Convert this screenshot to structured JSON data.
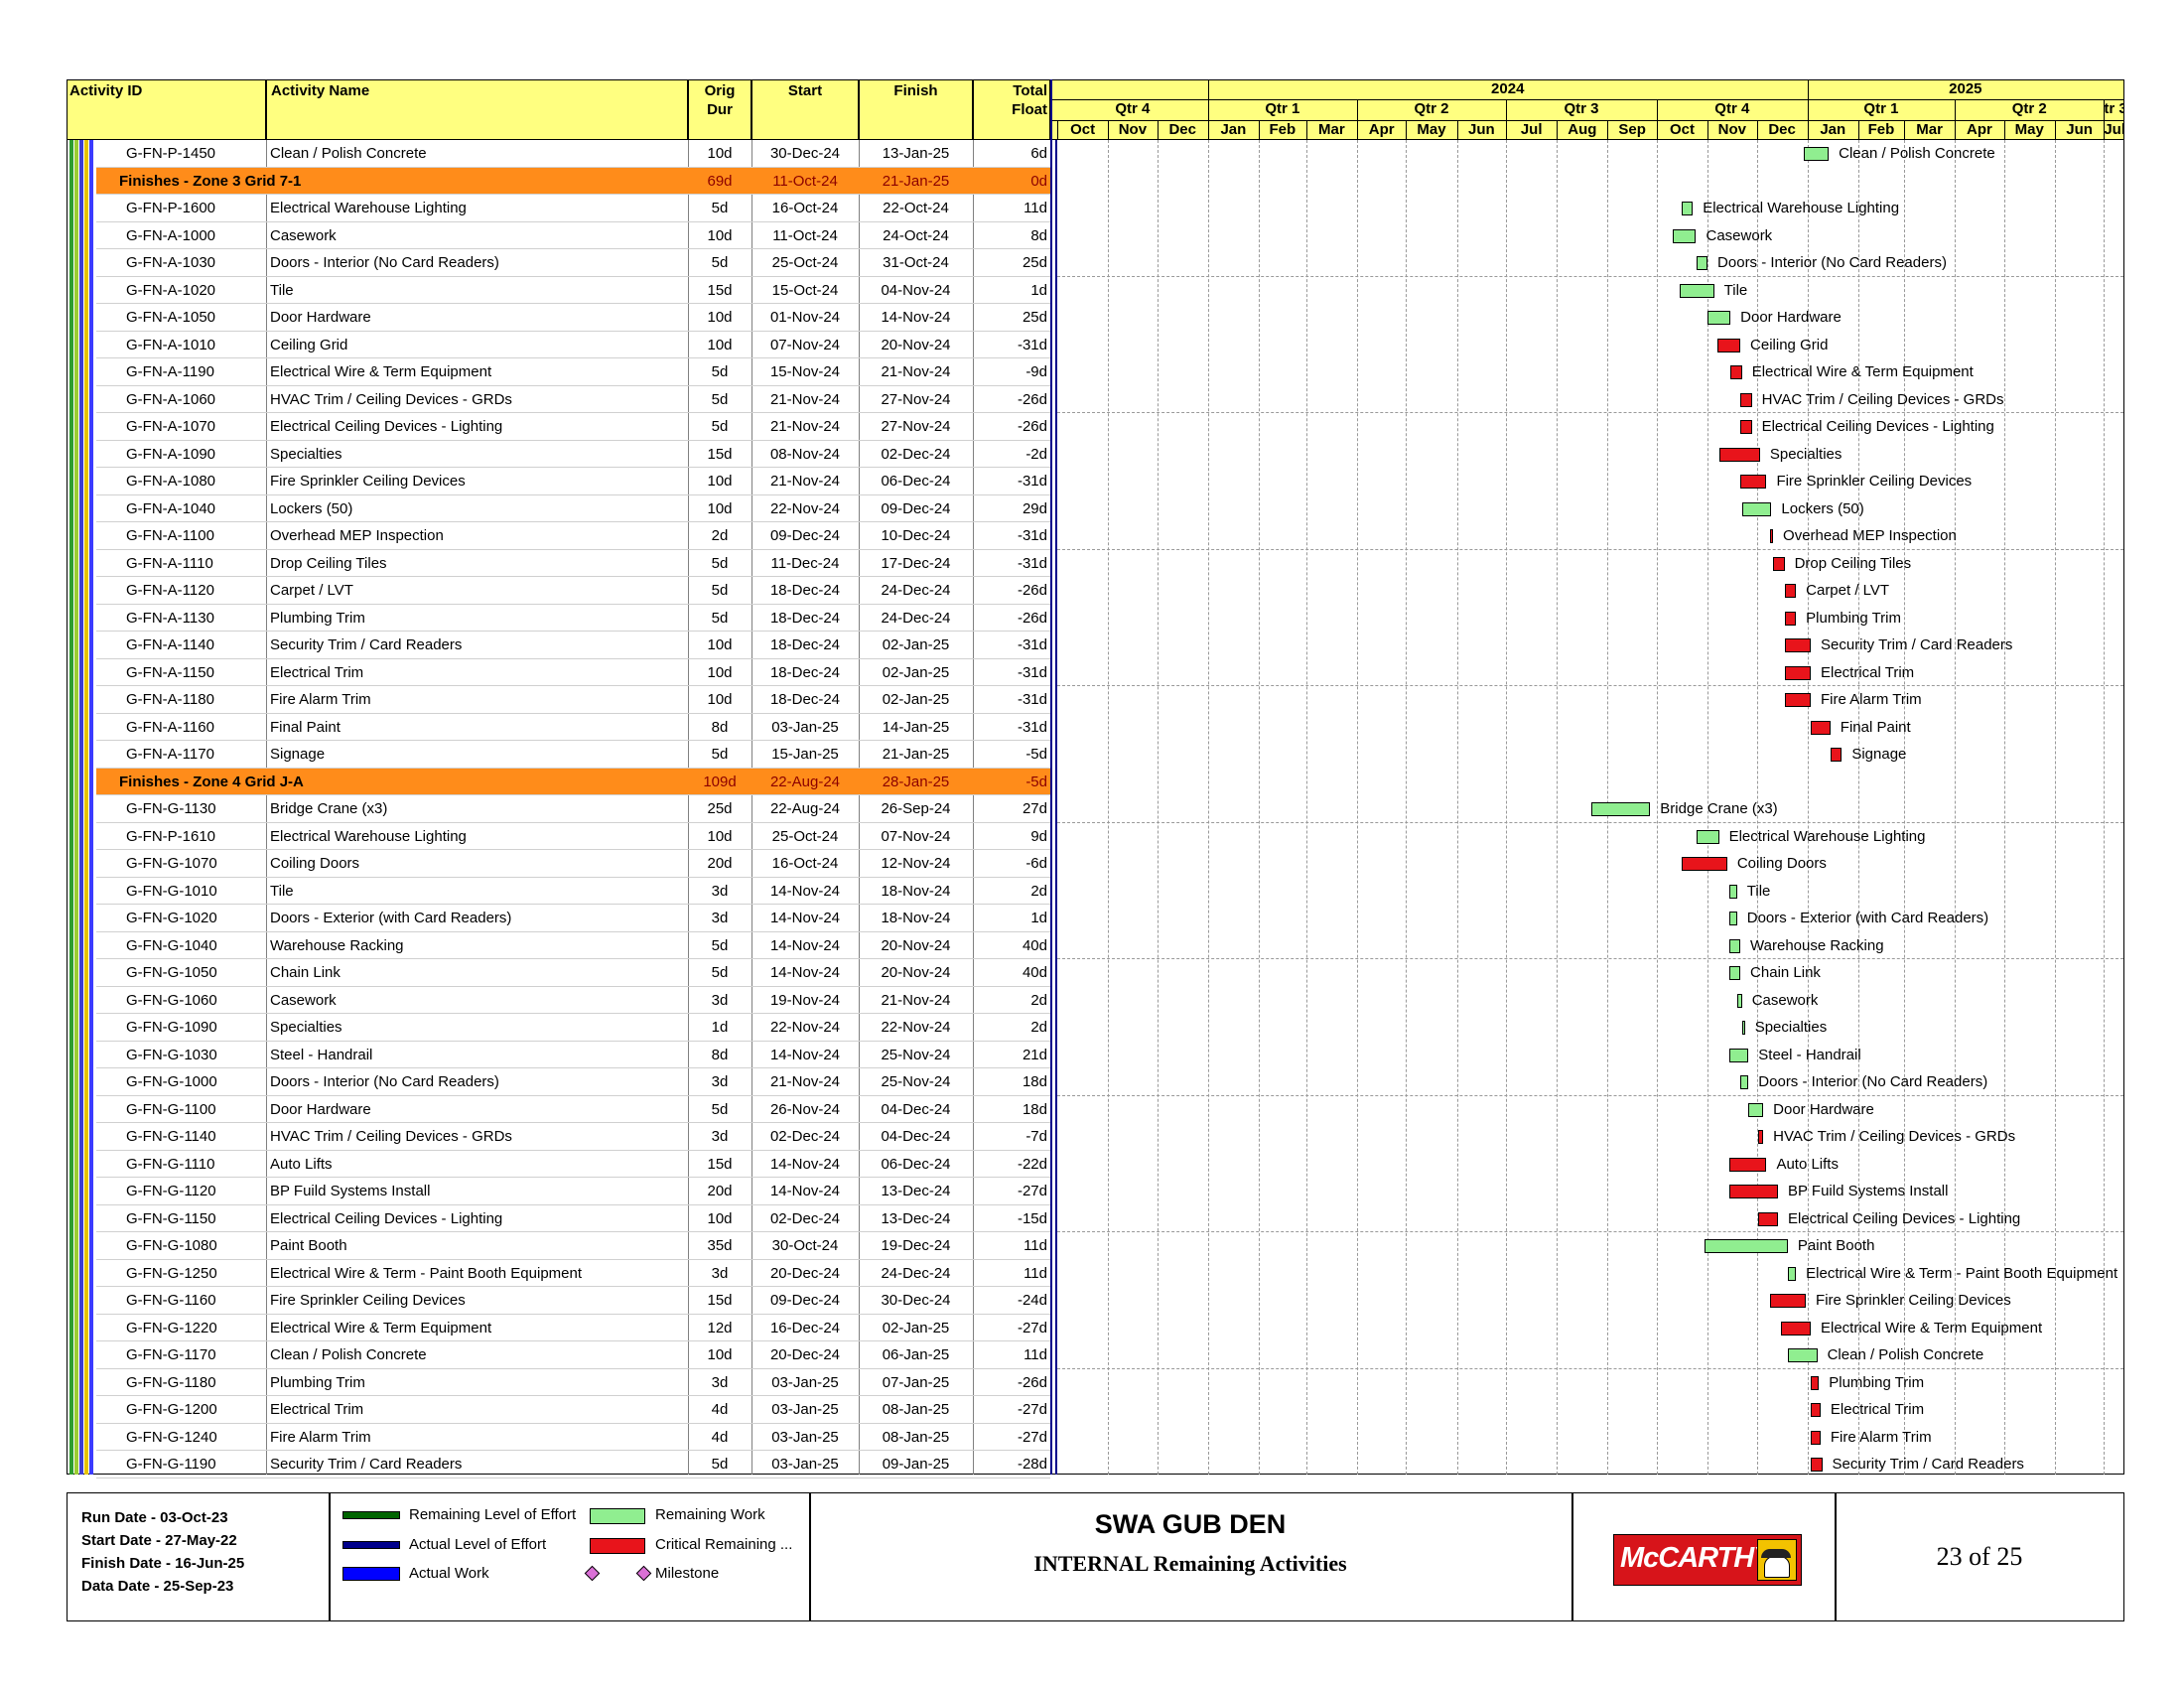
{
  "header": {
    "activity_id": "Activity ID",
    "activity_name": "Activity Name",
    "orig_dur_1": "Orig",
    "orig_dur_2": "Dur",
    "start": "Start",
    "finish": "Finish",
    "total_float_1": "Total",
    "total_float_2": "Float"
  },
  "timescale": {
    "years": [
      "2024",
      "2025"
    ],
    "quarters": [
      "Qtr 4",
      "Qtr 1",
      "Qtr 2",
      "Qtr 3",
      "Qtr 4",
      "Qtr 1",
      "Qtr 2",
      "tr 3"
    ],
    "months": [
      "Oct",
      "Nov",
      "Dec",
      "Jan",
      "Feb",
      "Mar",
      "Apr",
      "May",
      "Jun",
      "Jul",
      "Aug",
      "Sep",
      "Oct",
      "Nov",
      "Dec",
      "Jan",
      "Feb",
      "Mar",
      "Apr",
      "May",
      "Jun",
      "Jul"
    ]
  },
  "colors": {
    "header_bg": "#ffff80",
    "group_bg": "#ff8c1a",
    "critical": "#e8141b",
    "noncritical": "#90ee90",
    "level_of_effort": "#006400",
    "actual_loe": "#00008b",
    "actual_work": "#0000ff",
    "milestone": "#da70d6"
  },
  "rows": [
    {
      "type": "activity",
      "id": "G-FN-P-1450",
      "name": "Clean / Polish Concrete",
      "dur": "10d",
      "start": "30-Dec-24",
      "finish": "13-Jan-25",
      "float": "6d",
      "critical": false,
      "s": "2024-12-30",
      "f": "2025-01-13"
    },
    {
      "type": "group",
      "name": "Finishes - Zone 3 Grid 7-1",
      "dur": "69d",
      "start": "11-Oct-24",
      "finish": "21-Jan-25",
      "float": "0d"
    },
    {
      "type": "activity",
      "id": "G-FN-P-1600",
      "name": "Electrical Warehouse Lighting",
      "dur": "5d",
      "start": "16-Oct-24",
      "finish": "22-Oct-24",
      "float": "11d",
      "critical": false,
      "s": "2024-10-16",
      "f": "2024-10-22"
    },
    {
      "type": "activity",
      "id": "G-FN-A-1000",
      "name": "Casework",
      "dur": "10d",
      "start": "11-Oct-24",
      "finish": "24-Oct-24",
      "float": "8d",
      "critical": false,
      "s": "2024-10-11",
      "f": "2024-10-24"
    },
    {
      "type": "activity",
      "id": "G-FN-A-1030",
      "name": "Doors - Interior (No Card Readers)",
      "dur": "5d",
      "start": "25-Oct-24",
      "finish": "31-Oct-24",
      "float": "25d",
      "critical": false,
      "s": "2024-10-25",
      "f": "2024-10-31"
    },
    {
      "type": "activity",
      "id": "G-FN-A-1020",
      "name": "Tile",
      "dur": "15d",
      "start": "15-Oct-24",
      "finish": "04-Nov-24",
      "float": "1d",
      "critical": false,
      "s": "2024-10-15",
      "f": "2024-11-04"
    },
    {
      "type": "activity",
      "id": "G-FN-A-1050",
      "name": "Door Hardware",
      "dur": "10d",
      "start": "01-Nov-24",
      "finish": "14-Nov-24",
      "float": "25d",
      "critical": false,
      "s": "2024-11-01",
      "f": "2024-11-14"
    },
    {
      "type": "activity",
      "id": "G-FN-A-1010",
      "name": "Ceiling Grid",
      "dur": "10d",
      "start": "07-Nov-24",
      "finish": "20-Nov-24",
      "float": "-31d",
      "critical": true,
      "s": "2024-11-07",
      "f": "2024-11-20"
    },
    {
      "type": "activity",
      "id": "G-FN-A-1190",
      "name": "Electrical Wire & Term Equipment",
      "dur": "5d",
      "start": "15-Nov-24",
      "finish": "21-Nov-24",
      "float": "-9d",
      "critical": true,
      "s": "2024-11-15",
      "f": "2024-11-21"
    },
    {
      "type": "activity",
      "id": "G-FN-A-1060",
      "name": "HVAC Trim / Ceiling Devices - GRDs",
      "dur": "5d",
      "start": "21-Nov-24",
      "finish": "27-Nov-24",
      "float": "-26d",
      "critical": true,
      "s": "2024-11-21",
      "f": "2024-11-27"
    },
    {
      "type": "activity",
      "id": "G-FN-A-1070",
      "name": "Electrical Ceiling Devices - Lighting",
      "dur": "5d",
      "start": "21-Nov-24",
      "finish": "27-Nov-24",
      "float": "-26d",
      "critical": true,
      "s": "2024-11-21",
      "f": "2024-11-27"
    },
    {
      "type": "activity",
      "id": "G-FN-A-1090",
      "name": "Specialties",
      "dur": "15d",
      "start": "08-Nov-24",
      "finish": "02-Dec-24",
      "float": "-2d",
      "critical": true,
      "s": "2024-11-08",
      "f": "2024-12-02"
    },
    {
      "type": "activity",
      "id": "G-FN-A-1080",
      "name": "Fire Sprinkler Ceiling Devices",
      "dur": "10d",
      "start": "21-Nov-24",
      "finish": "06-Dec-24",
      "float": "-31d",
      "critical": true,
      "s": "2024-11-21",
      "f": "2024-12-06"
    },
    {
      "type": "activity",
      "id": "G-FN-A-1040",
      "name": "Lockers (50)",
      "dur": "10d",
      "start": "22-Nov-24",
      "finish": "09-Dec-24",
      "float": "29d",
      "critical": false,
      "s": "2024-11-22",
      "f": "2024-12-09"
    },
    {
      "type": "activity",
      "id": "G-FN-A-1100",
      "name": "Overhead MEP Inspection",
      "dur": "2d",
      "start": "09-Dec-24",
      "finish": "10-Dec-24",
      "float": "-31d",
      "critical": true,
      "s": "2024-12-09",
      "f": "2024-12-10"
    },
    {
      "type": "activity",
      "id": "G-FN-A-1110",
      "name": "Drop Ceiling Tiles",
      "dur": "5d",
      "start": "11-Dec-24",
      "finish": "17-Dec-24",
      "float": "-31d",
      "critical": true,
      "s": "2024-12-11",
      "f": "2024-12-17"
    },
    {
      "type": "activity",
      "id": "G-FN-A-1120",
      "name": "Carpet / LVT",
      "dur": "5d",
      "start": "18-Dec-24",
      "finish": "24-Dec-24",
      "float": "-26d",
      "critical": true,
      "s": "2024-12-18",
      "f": "2024-12-24"
    },
    {
      "type": "activity",
      "id": "G-FN-A-1130",
      "name": "Plumbing Trim",
      "dur": "5d",
      "start": "18-Dec-24",
      "finish": "24-Dec-24",
      "float": "-26d",
      "critical": true,
      "s": "2024-12-18",
      "f": "2024-12-24"
    },
    {
      "type": "activity",
      "id": "G-FN-A-1140",
      "name": "Security Trim / Card Readers",
      "dur": "10d",
      "start": "18-Dec-24",
      "finish": "02-Jan-25",
      "float": "-31d",
      "critical": true,
      "s": "2024-12-18",
      "f": "2025-01-02"
    },
    {
      "type": "activity",
      "id": "G-FN-A-1150",
      "name": "Electrical Trim",
      "dur": "10d",
      "start": "18-Dec-24",
      "finish": "02-Jan-25",
      "float": "-31d",
      "critical": true,
      "s": "2024-12-18",
      "f": "2025-01-02"
    },
    {
      "type": "activity",
      "id": "G-FN-A-1180",
      "name": "Fire Alarm Trim",
      "dur": "10d",
      "start": "18-Dec-24",
      "finish": "02-Jan-25",
      "float": "-31d",
      "critical": true,
      "s": "2024-12-18",
      "f": "2025-01-02"
    },
    {
      "type": "activity",
      "id": "G-FN-A-1160",
      "name": "Final Paint",
      "dur": "8d",
      "start": "03-Jan-25",
      "finish": "14-Jan-25",
      "float": "-31d",
      "critical": true,
      "s": "2025-01-03",
      "f": "2025-01-14"
    },
    {
      "type": "activity",
      "id": "G-FN-A-1170",
      "name": "Signage",
      "dur": "5d",
      "start": "15-Jan-25",
      "finish": "21-Jan-25",
      "float": "-5d",
      "critical": true,
      "s": "2025-01-15",
      "f": "2025-01-21"
    },
    {
      "type": "group",
      "name": "Finishes - Zone 4 Grid J-A",
      "dur": "109d",
      "start": "22-Aug-24",
      "finish": "28-Jan-25",
      "float": "-5d"
    },
    {
      "type": "activity",
      "id": "G-FN-G-1130",
      "name": "Bridge Crane (x3)",
      "dur": "25d",
      "start": "22-Aug-24",
      "finish": "26-Sep-24",
      "float": "27d",
      "critical": false,
      "s": "2024-08-22",
      "f": "2024-09-26"
    },
    {
      "type": "activity",
      "id": "G-FN-P-1610",
      "name": "Electrical Warehouse Lighting",
      "dur": "10d",
      "start": "25-Oct-24",
      "finish": "07-Nov-24",
      "float": "9d",
      "critical": false,
      "s": "2024-10-25",
      "f": "2024-11-07"
    },
    {
      "type": "activity",
      "id": "G-FN-G-1070",
      "name": "Coiling Doors",
      "dur": "20d",
      "start": "16-Oct-24",
      "finish": "12-Nov-24",
      "float": "-6d",
      "critical": true,
      "s": "2024-10-16",
      "f": "2024-11-12"
    },
    {
      "type": "activity",
      "id": "G-FN-G-1010",
      "name": "Tile",
      "dur": "3d",
      "start": "14-Nov-24",
      "finish": "18-Nov-24",
      "float": "2d",
      "critical": false,
      "s": "2024-11-14",
      "f": "2024-11-18"
    },
    {
      "type": "activity",
      "id": "G-FN-G-1020",
      "name": "Doors - Exterior (with Card Readers)",
      "dur": "3d",
      "start": "14-Nov-24",
      "finish": "18-Nov-24",
      "float": "1d",
      "critical": false,
      "s": "2024-11-14",
      "f": "2024-11-18"
    },
    {
      "type": "activity",
      "id": "G-FN-G-1040",
      "name": "Warehouse Racking",
      "dur": "5d",
      "start": "14-Nov-24",
      "finish": "20-Nov-24",
      "float": "40d",
      "critical": false,
      "s": "2024-11-14",
      "f": "2024-11-20"
    },
    {
      "type": "activity",
      "id": "G-FN-G-1050",
      "name": "Chain Link",
      "dur": "5d",
      "start": "14-Nov-24",
      "finish": "20-Nov-24",
      "float": "40d",
      "critical": false,
      "s": "2024-11-14",
      "f": "2024-11-20"
    },
    {
      "type": "activity",
      "id": "G-FN-G-1060",
      "name": "Casework",
      "dur": "3d",
      "start": "19-Nov-24",
      "finish": "21-Nov-24",
      "float": "2d",
      "critical": false,
      "s": "2024-11-19",
      "f": "2024-11-21"
    },
    {
      "type": "activity",
      "id": "G-FN-G-1090",
      "name": "Specialties",
      "dur": "1d",
      "start": "22-Nov-24",
      "finish": "22-Nov-24",
      "float": "2d",
      "critical": false,
      "s": "2024-11-22",
      "f": "2024-11-22"
    },
    {
      "type": "activity",
      "id": "G-FN-G-1030",
      "name": "Steel - Handrail",
      "dur": "8d",
      "start": "14-Nov-24",
      "finish": "25-Nov-24",
      "float": "21d",
      "critical": false,
      "s": "2024-11-14",
      "f": "2024-11-25"
    },
    {
      "type": "activity",
      "id": "G-FN-G-1000",
      "name": "Doors - Interior (No Card Readers)",
      "dur": "3d",
      "start": "21-Nov-24",
      "finish": "25-Nov-24",
      "float": "18d",
      "critical": false,
      "s": "2024-11-21",
      "f": "2024-11-25"
    },
    {
      "type": "activity",
      "id": "G-FN-G-1100",
      "name": "Door Hardware",
      "dur": "5d",
      "start": "26-Nov-24",
      "finish": "04-Dec-24",
      "float": "18d",
      "critical": false,
      "s": "2024-11-26",
      "f": "2024-12-04"
    },
    {
      "type": "activity",
      "id": "G-FN-G-1140",
      "name": "HVAC Trim / Ceiling Devices - GRDs",
      "dur": "3d",
      "start": "02-Dec-24",
      "finish": "04-Dec-24",
      "float": "-7d",
      "critical": true,
      "s": "2024-12-02",
      "f": "2024-12-04"
    },
    {
      "type": "activity",
      "id": "G-FN-G-1110",
      "name": "Auto Lifts",
      "dur": "15d",
      "start": "14-Nov-24",
      "finish": "06-Dec-24",
      "float": "-22d",
      "critical": true,
      "s": "2024-11-14",
      "f": "2024-12-06"
    },
    {
      "type": "activity",
      "id": "G-FN-G-1120",
      "name": "BP Fuild Systems Install",
      "dur": "20d",
      "start": "14-Nov-24",
      "finish": "13-Dec-24",
      "float": "-27d",
      "critical": true,
      "s": "2024-11-14",
      "f": "2024-12-13"
    },
    {
      "type": "activity",
      "id": "G-FN-G-1150",
      "name": "Electrical Ceiling Devices - Lighting",
      "dur": "10d",
      "start": "02-Dec-24",
      "finish": "13-Dec-24",
      "float": "-15d",
      "critical": true,
      "s": "2024-12-02",
      "f": "2024-12-13"
    },
    {
      "type": "activity",
      "id": "G-FN-G-1080",
      "name": "Paint Booth",
      "dur": "35d",
      "start": "30-Oct-24",
      "finish": "19-Dec-24",
      "float": "11d",
      "critical": false,
      "s": "2024-10-30",
      "f": "2024-12-19"
    },
    {
      "type": "activity",
      "id": "G-FN-G-1250",
      "name": "Electrical Wire & Term - Paint Booth Equipment",
      "dur": "3d",
      "start": "20-Dec-24",
      "finish": "24-Dec-24",
      "float": "11d",
      "critical": false,
      "s": "2024-12-20",
      "f": "2024-12-24"
    },
    {
      "type": "activity",
      "id": "G-FN-G-1160",
      "name": "Fire Sprinkler Ceiling Devices",
      "dur": "15d",
      "start": "09-Dec-24",
      "finish": "30-Dec-24",
      "float": "-24d",
      "critical": true,
      "s": "2024-12-09",
      "f": "2024-12-30"
    },
    {
      "type": "activity",
      "id": "G-FN-G-1220",
      "name": "Electrical Wire & Term Equipment",
      "dur": "12d",
      "start": "16-Dec-24",
      "finish": "02-Jan-25",
      "float": "-27d",
      "critical": true,
      "s": "2024-12-16",
      "f": "2025-01-02"
    },
    {
      "type": "activity",
      "id": "G-FN-G-1170",
      "name": "Clean / Polish Concrete",
      "dur": "10d",
      "start": "20-Dec-24",
      "finish": "06-Jan-25",
      "float": "11d",
      "critical": false,
      "s": "2024-12-20",
      "f": "2025-01-06"
    },
    {
      "type": "activity",
      "id": "G-FN-G-1180",
      "name": "Plumbing Trim",
      "dur": "3d",
      "start": "03-Jan-25",
      "finish": "07-Jan-25",
      "float": "-26d",
      "critical": true,
      "s": "2025-01-03",
      "f": "2025-01-07"
    },
    {
      "type": "activity",
      "id": "G-FN-G-1200",
      "name": "Electrical Trim",
      "dur": "4d",
      "start": "03-Jan-25",
      "finish": "08-Jan-25",
      "float": "-27d",
      "critical": true,
      "s": "2025-01-03",
      "f": "2025-01-08"
    },
    {
      "type": "activity",
      "id": "G-FN-G-1240",
      "name": "Fire Alarm Trim",
      "dur": "4d",
      "start": "03-Jan-25",
      "finish": "08-Jan-25",
      "float": "-27d",
      "critical": true,
      "s": "2025-01-03",
      "f": "2025-01-08"
    },
    {
      "type": "activity",
      "id": "G-FN-G-1190",
      "name": "Security Trim / Card Readers",
      "dur": "5d",
      "start": "03-Jan-25",
      "finish": "09-Jan-25",
      "float": "-28d",
      "critical": true,
      "s": "2025-01-03",
      "f": "2025-01-09"
    }
  ],
  "footer": {
    "run_date": "Run Date - 03-Oct-23",
    "start_date": "Start Date - 27-May-22",
    "finish_date": "Finish Date - 16-Jun-25",
    "data_date": "Data Date - 25-Sep-23",
    "legend": {
      "remaining_loe": "Remaining Level of Effort",
      "actual_loe": "Actual Level of Effort",
      "actual_work": "Actual Work",
      "remaining_work": "Remaining Work",
      "critical_remaining": "Critical Remaining ...",
      "milestone": "Milestone"
    },
    "project_title": "SWA GUB DEN",
    "subtitle": "INTERNAL Remaining Activities",
    "logo_text": "McCARTHY",
    "page": "23 of 25"
  }
}
